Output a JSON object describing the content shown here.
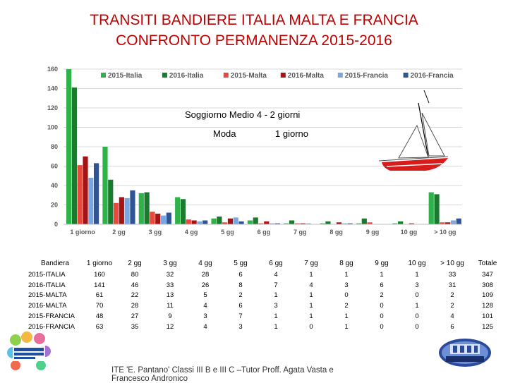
{
  "title": {
    "line1": "TRANSITI BANDIERE ITALIA MALTA E FRANCIA",
    "line2": "CONFRONTO PERMANENZA 2015-2016"
  },
  "notes": {
    "soggiorno": "Soggiorno Medio 4 - 2 giorni",
    "moda": "Moda",
    "moda_value": "1 giorno"
  },
  "chart_data": {
    "type": "bar",
    "categories": [
      "1 giorno",
      "2 gg",
      "3 gg",
      "4 gg",
      "5 gg",
      "6 gg",
      "7 gg",
      "8 gg",
      "9 gg",
      "10 gg",
      "> 10 gg"
    ],
    "ylim": [
      0,
      160
    ],
    "yticks": [
      0,
      20,
      40,
      60,
      80,
      100,
      120,
      140,
      160
    ],
    "legend_position": "top",
    "series": [
      {
        "name": "2015-Italia",
        "color": "#2db34a",
        "values": [
          160,
          80,
          32,
          28,
          6,
          4,
          1,
          1,
          1,
          1,
          33
        ]
      },
      {
        "name": "2016-Italia",
        "color": "#1a7a2e",
        "values": [
          141,
          46,
          33,
          26,
          8,
          7,
          4,
          3,
          6,
          3,
          31
        ]
      },
      {
        "name": "2015-Malta",
        "color": "#e8493f",
        "values": [
          61,
          22,
          13,
          5,
          2,
          1,
          1,
          0,
          2,
          0,
          2
        ]
      },
      {
        "name": "2016-Malta",
        "color": "#a31515",
        "values": [
          70,
          28,
          11,
          4,
          6,
          3,
          1,
          2,
          0,
          1,
          2
        ]
      },
      {
        "name": "2015-Francia",
        "color": "#7aa7e0",
        "values": [
          48,
          27,
          9,
          3,
          7,
          1,
          1,
          1,
          0,
          0,
          4
        ]
      },
      {
        "name": "2016-Francia",
        "color": "#2f5597",
        "values": [
          63,
          35,
          12,
          4,
          3,
          1,
          0,
          1,
          0,
          0,
          6
        ]
      }
    ]
  },
  "table": {
    "headers": [
      "Bandiera",
      "1 giorno",
      "2 gg",
      "3 gg",
      "4 gg",
      "5 gg",
      "6 gg",
      "7 gg",
      "8 gg",
      "9 gg",
      "10 gg",
      "> 10 gg",
      "Totale"
    ],
    "rows": [
      {
        "label": "2015-ITALIA",
        "values": [
          "160",
          "80",
          "32",
          "28",
          "6",
          "4",
          "1",
          "1",
          "1",
          "1",
          "33",
          "347"
        ]
      },
      {
        "label": "2016-ITALIA",
        "values": [
          "141",
          "46",
          "33",
          "26",
          "8",
          "7",
          "4",
          "3",
          "6",
          "3",
          "31",
          "308"
        ]
      },
      {
        "label": "2015-MALTA",
        "values": [
          "61",
          "22",
          "13",
          "5",
          "2",
          "1",
          "1",
          "0",
          "2",
          "0",
          "2",
          "109"
        ]
      },
      {
        "label": "2016-MALTA",
        "values": [
          "70",
          "28",
          "11",
          "4",
          "6",
          "3",
          "1",
          "2",
          "0",
          "1",
          "2",
          "128"
        ]
      },
      {
        "label": "2015-FRANCIA",
        "values": [
          "48",
          "27",
          "9",
          "3",
          "7",
          "1",
          "1",
          "1",
          "0",
          "0",
          "4",
          "101"
        ]
      },
      {
        "label": "2016-FRANCIA",
        "values": [
          "63",
          "35",
          "12",
          "4",
          "3",
          "1",
          "0",
          "1",
          "0",
          "0",
          "6",
          "125"
        ]
      }
    ]
  },
  "footer": {
    "line1": "ITE 'E. Pantano' Classi III B e III C –Tutor Proff. Agata Vasta e",
    "line2": "Francesco Andronico"
  }
}
